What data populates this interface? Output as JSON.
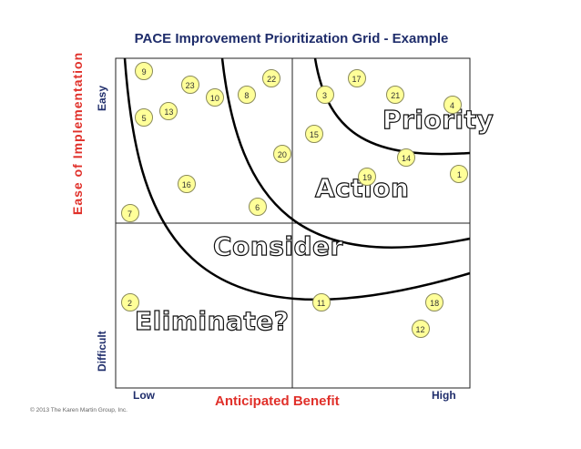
{
  "title": "PACE Improvement Prioritization Grid - Example",
  "y_axis": {
    "title": "Ease of Implementation",
    "high_label": "Easy",
    "low_label": "Difficult"
  },
  "x_axis": {
    "title": "Anticipated Benefit",
    "low_label": "Low",
    "high_label": "High"
  },
  "zones": {
    "priority": "Priority",
    "action": "Action",
    "consider": "Consider",
    "eliminate": "Eliminate?"
  },
  "copyright": "© 2013 The Karen Martin Group, Inc.",
  "colors": {
    "title": "#1f2d6b",
    "axis_title": "#e0302a",
    "item_fill": "#ffff99"
  },
  "items": [
    {
      "label": "9",
      "benefit": 0.08,
      "ease": 0.96
    },
    {
      "label": "23",
      "benefit": 0.21,
      "ease": 0.92
    },
    {
      "label": "10",
      "benefit": 0.28,
      "ease": 0.88
    },
    {
      "label": "8",
      "benefit": 0.37,
      "ease": 0.89
    },
    {
      "label": "22",
      "benefit": 0.44,
      "ease": 0.94
    },
    {
      "label": "3",
      "benefit": 0.59,
      "ease": 0.89
    },
    {
      "label": "17",
      "benefit": 0.68,
      "ease": 0.94
    },
    {
      "label": "21",
      "benefit": 0.79,
      "ease": 0.89
    },
    {
      "label": "4",
      "benefit": 0.95,
      "ease": 0.86
    },
    {
      "label": "5",
      "benefit": 0.08,
      "ease": 0.82
    },
    {
      "label": "13",
      "benefit": 0.15,
      "ease": 0.84
    },
    {
      "label": "15",
      "benefit": 0.56,
      "ease": 0.77
    },
    {
      "label": "20",
      "benefit": 0.47,
      "ease": 0.71
    },
    {
      "label": "14",
      "benefit": 0.82,
      "ease": 0.7
    },
    {
      "label": "1",
      "benefit": 0.97,
      "ease": 0.65
    },
    {
      "label": "19",
      "benefit": 0.71,
      "ease": 0.64
    },
    {
      "label": "16",
      "benefit": 0.2,
      "ease": 0.62
    },
    {
      "label": "6",
      "benefit": 0.4,
      "ease": 0.55
    },
    {
      "label": "7",
      "benefit": 0.04,
      "ease": 0.53
    },
    {
      "label": "2",
      "benefit": 0.04,
      "ease": 0.26
    },
    {
      "label": "11",
      "benefit": 0.58,
      "ease": 0.26
    },
    {
      "label": "18",
      "benefit": 0.9,
      "ease": 0.26
    },
    {
      "label": "12",
      "benefit": 0.86,
      "ease": 0.18
    }
  ]
}
